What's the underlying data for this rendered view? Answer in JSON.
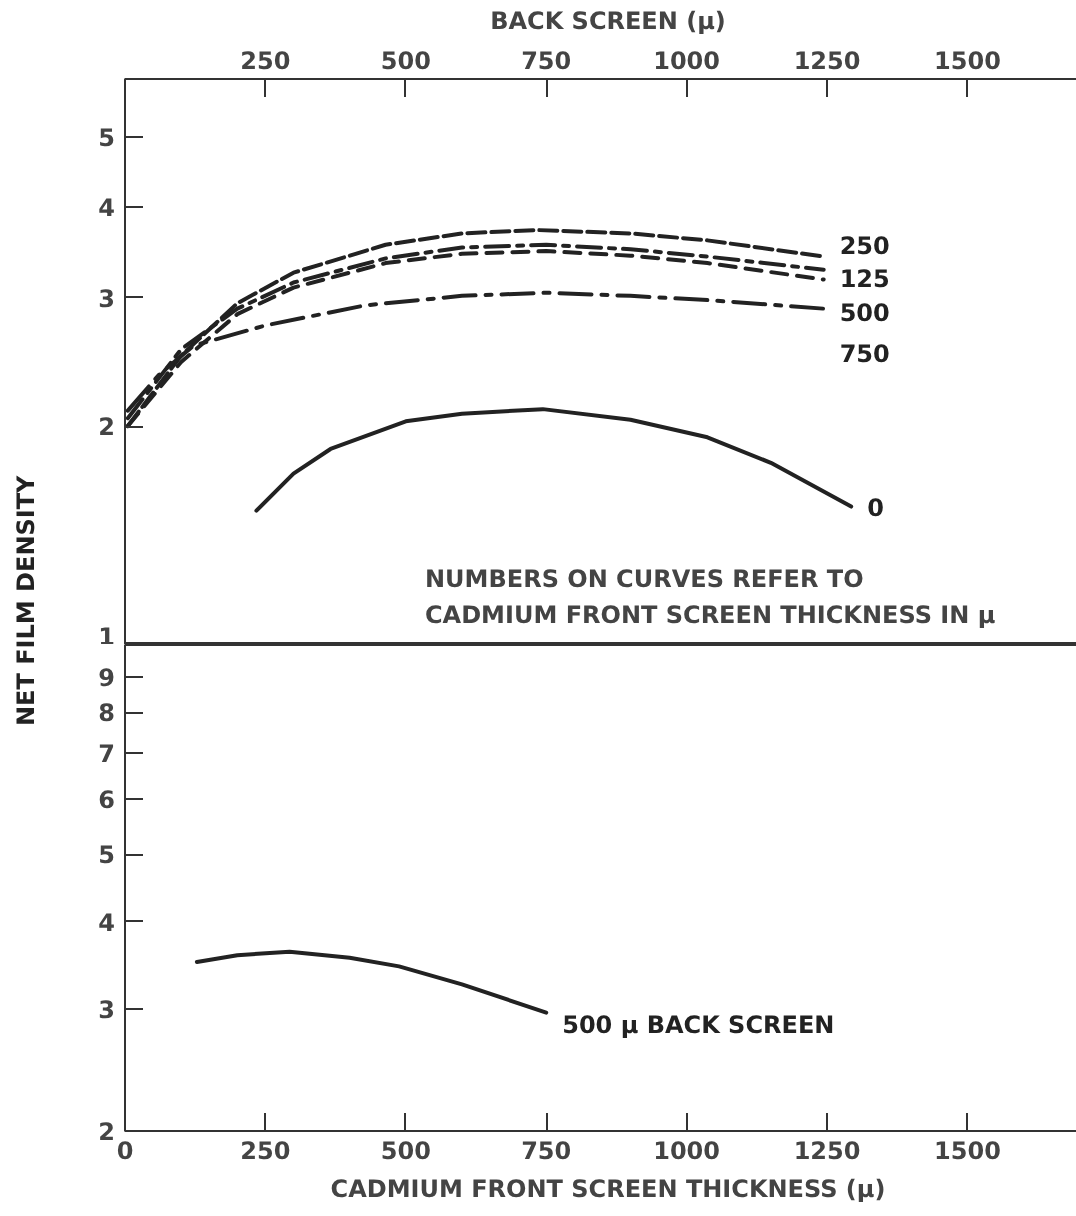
{
  "chart_data": [
    {
      "type": "line",
      "xlabel": "BACK SCREEN (μ)",
      "xlim": [
        0,
        1720
      ],
      "xticks": [
        250,
        500,
        750,
        1000,
        1250,
        1500
      ],
      "ylim": [
        1,
        6
      ],
      "yticks": [
        1,
        2,
        3,
        4,
        5
      ],
      "log": "y",
      "grid": false,
      "annotations": [
        "NUMBERS ON CURVES REFER TO\nCADMIUM FRONT SCREEN THICKNESS IN μ"
      ],
      "series": [
        {
          "name": "250",
          "color": "#222222",
          "line_style": "dashed",
          "x": [
            5,
            100,
            200,
            300,
            464,
            600,
            732,
            900,
            1037,
            1244
          ],
          "values": [
            2.0,
            2.5,
            2.95,
            3.25,
            3.55,
            3.68,
            3.72,
            3.68,
            3.6,
            3.42
          ]
        },
        {
          "name": "125",
          "color": "#222222",
          "line_style": "dashed",
          "x": [
            5,
            100,
            200,
            300,
            464,
            600,
            750,
            900,
            1037,
            1244
          ],
          "values": [
            2.05,
            2.55,
            2.9,
            3.15,
            3.4,
            3.52,
            3.55,
            3.5,
            3.42,
            3.28
          ]
        },
        {
          "name": "500",
          "color": "#222222",
          "line_style": "dashed",
          "x": [
            5,
            100,
            200,
            300,
            464,
            600,
            750,
            900,
            1037,
            1244
          ],
          "values": [
            2.0,
            2.45,
            2.85,
            3.1,
            3.35,
            3.45,
            3.48,
            3.43,
            3.35,
            3.18
          ]
        },
        {
          "name": "750",
          "color": "#222222",
          "line_style": "dashed",
          "x": [
            5,
            60,
            122,
            250,
            427,
            600,
            750,
            900,
            1037,
            1244
          ],
          "values": [
            2.1,
            2.35,
            2.58,
            2.75,
            2.93,
            3.02,
            3.05,
            3.02,
            2.98,
            2.9
          ]
        },
        {
          "name": "0",
          "color": "#222222",
          "line_style": "solid",
          "x": [
            234,
            300,
            366,
            500,
            600,
            744,
            900,
            1037,
            1150,
            1293
          ],
          "values": [
            1.53,
            1.72,
            1.86,
            2.03,
            2.08,
            2.11,
            2.04,
            1.93,
            1.78,
            1.55
          ]
        }
      ]
    },
    {
      "type": "line",
      "xlabel": "CADMIUM FRONT SCREEN THICKNESS (μ)",
      "ylabel": "NET FILM DENSITY",
      "xlim": [
        0,
        1720
      ],
      "xticks": [
        0,
        250,
        500,
        750,
        1000,
        1250,
        1500
      ],
      "ylim": [
        2,
        10
      ],
      "yticks": [
        2,
        3,
        4,
        5,
        6,
        7,
        8,
        9
      ],
      "log": "y",
      "grid": false,
      "series": [
        {
          "name": "500 μ BACK SCREEN",
          "color": "#222222",
          "line_style": "solid",
          "x": [
            128,
            200,
            293,
            400,
            488,
            600,
            750
          ],
          "values": [
            3.5,
            3.58,
            3.62,
            3.55,
            3.45,
            3.25,
            2.96
          ]
        }
      ]
    }
  ]
}
